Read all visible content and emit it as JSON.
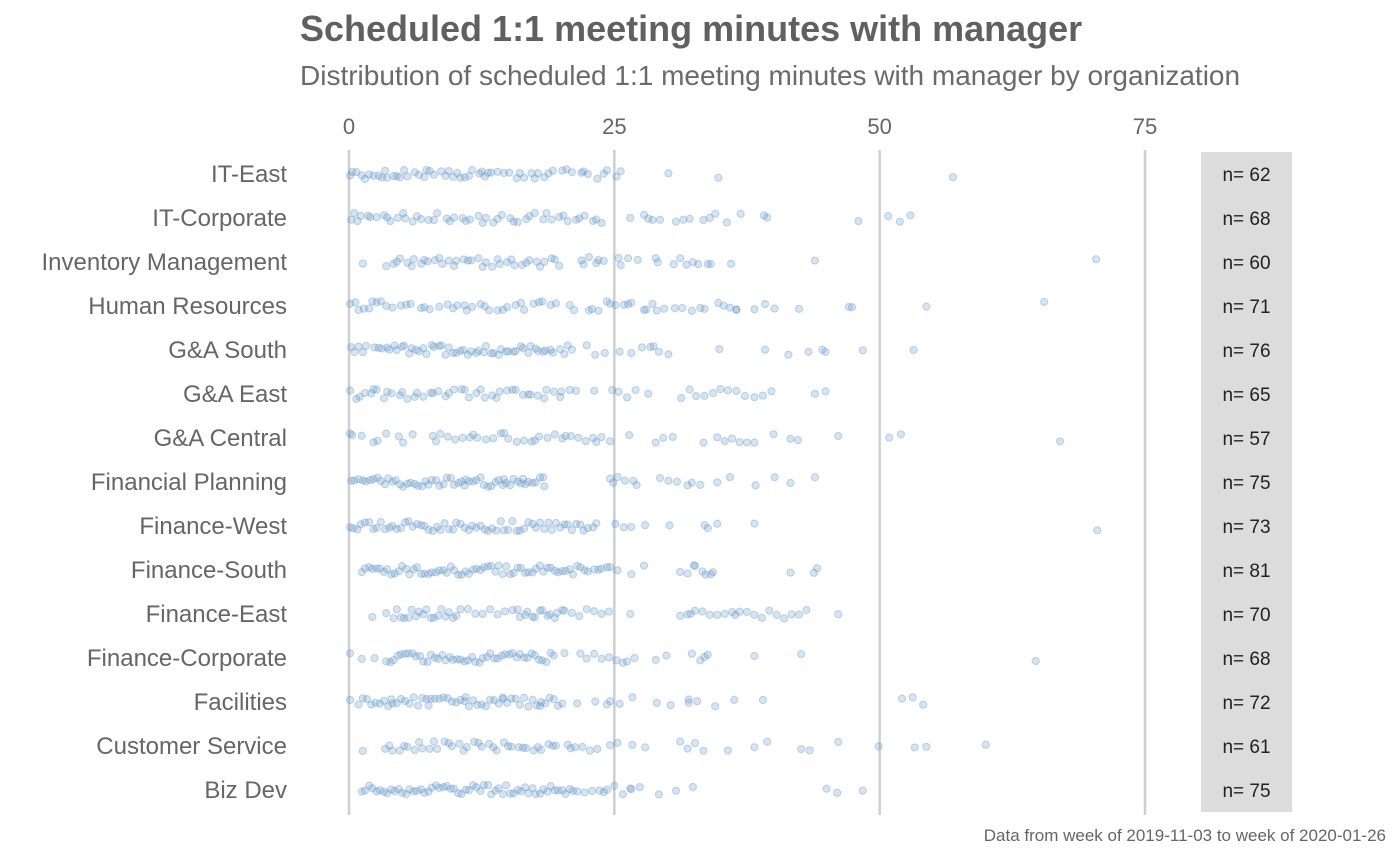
{
  "chart_data": {
    "type": "scatter",
    "title": "Scheduled 1:1 meeting minutes with manager",
    "subtitle": "Distribution of scheduled 1:1 meeting minutes with manager by organization",
    "caption": "Data from week of 2019-11-03 to week of 2020-01-26",
    "xlim": [
      0,
      80
    ],
    "x_ticks": [
      0,
      25,
      50,
      75
    ],
    "x_tick_labels": [
      "0",
      "25",
      "50",
      "75"
    ],
    "x_axis_position": "top",
    "grid": "vertical major lines only",
    "point_color": "#5b8fc4",
    "point_opacity": 0.25,
    "counts_panel_color": "#dcdcdc",
    "categories": [
      "IT-East",
      "IT-Corporate",
      "Inventory Management",
      "Human Resources",
      "G&A South",
      "G&A East",
      "G&A Central",
      "Financial Planning",
      "Finance-West",
      "Finance-South",
      "Finance-East",
      "Finance-Corporate",
      "Facilities",
      "Customer Service",
      "Biz Dev"
    ],
    "counts": [
      "n= 62",
      "n= 68",
      "n= 60",
      "n= 71",
      "n= 76",
      "n= 65",
      "n= 57",
      "n= 75",
      "n= 73",
      "n= 81",
      "n= 70",
      "n= 68",
      "n= 72",
      "n= 61",
      "n= 75"
    ],
    "series": [
      {
        "values": [
          0.1,
          0.3,
          1.2,
          1.5,
          2.3,
          2.8,
          3.4,
          3.6,
          4.5,
          4.8,
          5.5,
          6.2,
          7.1,
          7.6,
          8.0,
          8.7,
          9.4,
          9.8,
          10.5,
          10.9,
          11.6,
          12.3,
          12.8,
          13.4,
          14.0,
          15.1,
          15.8,
          16.5,
          17.2,
          17.8,
          18.4,
          19.2,
          20.1,
          21.0,
          21.9,
          22.5,
          23.4,
          24.0,
          25.2,
          25.6,
          30.1,
          34.8,
          56.9,
          0.7,
          1.9,
          3.1,
          4.2,
          5.2,
          6.6,
          7.3,
          9.1,
          10.2,
          11.3,
          12.5,
          13.1,
          14.6,
          16.1,
          17.5,
          18.8,
          20.5,
          22.1,
          24.3
        ]
      },
      {
        "values": [
          0.2,
          0.5,
          1.1,
          1.8,
          2.6,
          3.3,
          3.9,
          4.6,
          5.3,
          6.0,
          6.8,
          7.5,
          8.3,
          9.2,
          9.9,
          10.7,
          11.4,
          12.2,
          12.9,
          13.6,
          14.4,
          15.2,
          15.9,
          16.7,
          17.5,
          18.3,
          19.1,
          19.8,
          20.6,
          21.4,
          22.2,
          23.0,
          23.8,
          26.5,
          27.8,
          28.2,
          29.3,
          30.8,
          32.1,
          33.4,
          34.5,
          35.6,
          36.9,
          39.1,
          39.4,
          48.0,
          50.8,
          51.9,
          52.9,
          0.8,
          2.0,
          3.6,
          5.1,
          6.4,
          8.0,
          9.5,
          11.0,
          12.6,
          14.0,
          15.5,
          17.0,
          18.6,
          20.2,
          21.7,
          23.3,
          28.6,
          31.5,
          34.0
        ]
      },
      {
        "values": [
          1.3,
          3.5,
          4.2,
          4.8,
          5.5,
          6.1,
          6.8,
          7.4,
          8.1,
          8.8,
          9.4,
          10.1,
          10.8,
          11.5,
          12.2,
          12.9,
          13.5,
          14.2,
          14.9,
          15.6,
          16.3,
          17.0,
          17.7,
          18.4,
          19.1,
          19.8,
          21.9,
          22.6,
          23.3,
          24.0,
          25.4,
          26.3,
          28.9,
          31.2,
          31.8,
          32.9,
          33.8,
          43.9,
          70.4,
          4.5,
          5.9,
          7.1,
          8.5,
          9.9,
          11.2,
          12.6,
          14.0,
          15.3,
          16.7,
          18.0,
          19.4,
          22.1,
          23.5,
          25.6,
          27.2,
          29.1,
          30.6,
          32.4,
          34.1,
          36.0
        ]
      },
      {
        "values": [
          0.1,
          0.6,
          1.4,
          2.2,
          2.6,
          3.5,
          4.9,
          5.4,
          6.8,
          7.1,
          8.5,
          9.3,
          10.2,
          10.9,
          11.6,
          12.4,
          13.2,
          14.0,
          14.9,
          15.7,
          16.5,
          17.4,
          18.2,
          19.0,
          20.8,
          22.6,
          23.5,
          24.3,
          25.1,
          25.9,
          26.6,
          27.8,
          28.6,
          29.0,
          30.7,
          32.3,
          33.5,
          35.3,
          35.9,
          36.5,
          39.2,
          42.4,
          47.1,
          47.4,
          54.4,
          65.5,
          0.9,
          1.9,
          3.0,
          4.1,
          5.8,
          7.6,
          9.8,
          11.1,
          12.8,
          14.5,
          16.2,
          17.9,
          19.5,
          21.2,
          22.9,
          24.6,
          26.3,
          28.0,
          29.7,
          31.4,
          33.1,
          34.8,
          36.5,
          38.2,
          40.1
        ]
      },
      {
        "values": [
          0.2,
          0.9,
          1.6,
          2.4,
          3.1,
          3.8,
          4.5,
          5.2,
          5.9,
          6.6,
          7.3,
          8.0,
          8.7,
          9.4,
          10.1,
          10.8,
          11.5,
          12.2,
          12.9,
          13.6,
          14.3,
          15.0,
          15.7,
          16.4,
          17.1,
          17.8,
          18.5,
          19.2,
          19.9,
          20.6,
          23.2,
          24.1,
          26.6,
          27.6,
          28.4,
          29.2,
          30.1,
          34.9,
          39.2,
          41.4,
          43.3,
          44.6,
          44.9,
          48.4,
          53.2,
          0.5,
          1.3,
          2.8,
          3.6,
          4.3,
          5.0,
          5.7,
          6.3,
          7.0,
          7.8,
          8.5,
          9.1,
          9.8,
          10.5,
          11.2,
          12.0,
          12.7,
          13.4,
          14.1,
          14.8,
          15.5,
          16.2,
          16.9,
          17.6,
          18.3,
          19.0,
          20.3,
          21.0,
          22.4,
          25.5,
          28.7
        ]
      },
      {
        "values": [
          0.1,
          0.7,
          1.5,
          2.1,
          2.6,
          3.3,
          4.0,
          4.8,
          5.5,
          6.2,
          7.0,
          7.7,
          8.4,
          9.1,
          9.9,
          10.6,
          11.3,
          12.0,
          12.8,
          13.5,
          14.2,
          14.9,
          15.7,
          16.4,
          17.1,
          17.8,
          18.6,
          19.3,
          20.0,
          20.8,
          23.1,
          24.8,
          25.4,
          26.2,
          27.0,
          28.2,
          31.3,
          32.1,
          32.7,
          33.5,
          34.3,
          35.0,
          35.7,
          36.5,
          37.3,
          38.2,
          39.0,
          39.8,
          43.9,
          44.9,
          1.0,
          2.3,
          3.6,
          5.0,
          6.4,
          7.9,
          9.4,
          10.9,
          12.4,
          13.9,
          15.4,
          16.9,
          18.4,
          19.9,
          21.4
        ]
      },
      {
        "values": [
          0.1,
          0.3,
          2.3,
          2.7,
          4.7,
          5.1,
          7.9,
          8.6,
          9.3,
          10.0,
          10.7,
          11.4,
          12.1,
          12.9,
          13.6,
          14.3,
          15.0,
          15.8,
          16.5,
          17.2,
          17.9,
          18.7,
          19.4,
          20.1,
          20.9,
          21.6,
          22.3,
          23.0,
          23.8,
          24.6,
          28.9,
          29.6,
          30.5,
          34.7,
          35.4,
          36.1,
          36.8,
          37.5,
          38.2,
          40.0,
          41.6,
          42.3,
          46.1,
          50.9,
          52.0,
          67.0,
          1.2,
          3.5,
          6.0,
          8.2,
          11.7,
          14.6,
          17.5,
          20.4,
          23.3,
          26.4,
          33.4
        ]
      },
      {
        "values": [
          0.2,
          0.9,
          1.6,
          2.3,
          3.0,
          3.4,
          4.1,
          4.8,
          5.5,
          6.2,
          6.9,
          7.5,
          8.2,
          8.9,
          9.6,
          10.3,
          11.0,
          11.7,
          12.4,
          13.1,
          13.8,
          14.5,
          15.2,
          15.9,
          16.6,
          17.3,
          18.0,
          18.4,
          24.6,
          25.3,
          26.0,
          26.8,
          29.3,
          30.1,
          30.9,
          32.3,
          33.1,
          34.7,
          35.9,
          38.3,
          40.1,
          41.6,
          43.9,
          0.5,
          1.3,
          2.7,
          3.7,
          4.4,
          5.1,
          5.8,
          6.5,
          7.2,
          8.5,
          9.2,
          9.9,
          10.6,
          11.3,
          12.0,
          12.7,
          13.4,
          14.1,
          14.8,
          15.5,
          16.2,
          16.9,
          17.6,
          18.3,
          2.0,
          7.8,
          10.9,
          14.6,
          16.4,
          24.9,
          27.1,
          31.9
        ]
      },
      {
        "values": [
          0.1,
          0.8,
          1.5,
          2.3,
          3.0,
          3.8,
          4.5,
          5.3,
          6.0,
          6.8,
          7.5,
          8.3,
          9.0,
          9.8,
          10.5,
          11.3,
          12.0,
          12.8,
          13.5,
          14.3,
          15.0,
          15.8,
          16.5,
          17.3,
          18.0,
          18.8,
          19.5,
          20.3,
          21.0,
          21.8,
          22.5,
          23.3,
          25.1,
          25.9,
          26.6,
          27.9,
          30.2,
          33.5,
          34.7,
          38.2,
          70.5,
          0.4,
          1.1,
          1.9,
          2.6,
          3.4,
          4.1,
          4.9,
          5.6,
          6.4,
          7.1,
          7.9,
          8.6,
          9.4,
          10.1,
          10.9,
          11.6,
          12.4,
          13.1,
          13.9,
          14.6,
          15.4,
          16.1,
          16.9,
          17.6,
          18.4,
          19.1,
          19.9,
          20.6,
          21.4,
          22.1,
          23.0,
          33.8
        ]
      },
      {
        "values": [
          1.2,
          1.9,
          2.6,
          3.3,
          4.0,
          4.7,
          5.4,
          6.1,
          6.8,
          7.5,
          8.2,
          8.9,
          9.6,
          10.3,
          11.0,
          11.7,
          12.4,
          13.1,
          13.8,
          14.5,
          15.2,
          15.9,
          16.6,
          17.3,
          18.0,
          18.7,
          19.4,
          20.1,
          20.8,
          21.5,
          22.2,
          23.1,
          23.8,
          24.6,
          25.3,
          26.6,
          27.8,
          31.2,
          31.9,
          32.6,
          33.3,
          34.1,
          41.6,
          43.8,
          44.1,
          1.5,
          2.2,
          2.9,
          3.6,
          4.3,
          5.0,
          5.7,
          6.4,
          7.1,
          7.8,
          8.5,
          9.2,
          9.9,
          10.6,
          11.3,
          12.0,
          12.7,
          13.4,
          14.1,
          14.8,
          15.5,
          16.2,
          16.9,
          17.6,
          18.3,
          19.0,
          19.7,
          20.4,
          21.1,
          21.8,
          22.5,
          23.5,
          24.3,
          32.5,
          33.6,
          34.3
        ]
      },
      {
        "values": [
          2.2,
          3.5,
          4.2,
          4.9,
          5.6,
          6.3,
          7.0,
          7.7,
          8.4,
          9.1,
          9.8,
          10.5,
          11.2,
          11.9,
          12.6,
          13.3,
          14.0,
          14.7,
          15.4,
          16.1,
          16.8,
          17.5,
          18.2,
          18.9,
          19.6,
          20.3,
          21.0,
          21.7,
          22.4,
          23.1,
          23.8,
          24.5,
          26.5,
          31.2,
          31.9,
          32.6,
          33.3,
          34.0,
          34.7,
          35.4,
          36.1,
          36.8,
          37.5,
          38.2,
          38.9,
          39.6,
          40.3,
          41.0,
          41.7,
          42.4,
          43.1,
          46.1,
          4.5,
          5.2,
          5.9,
          6.6,
          7.3,
          8.0,
          8.7,
          9.4,
          10.1,
          15.9,
          16.6,
          17.3,
          18.0,
          18.7,
          19.4,
          20.1,
          32.2,
          36.4
        ]
      },
      {
        "values": [
          0.1,
          1.2,
          2.4,
          3.5,
          4.2,
          4.9,
          5.6,
          6.3,
          7.0,
          7.7,
          8.4,
          9.1,
          9.8,
          10.5,
          11.2,
          11.9,
          12.6,
          13.3,
          14.0,
          14.7,
          15.4,
          16.1,
          16.8,
          17.5,
          18.2,
          19.0,
          20.3,
          21.8,
          23.1,
          23.8,
          24.5,
          25.2,
          26.2,
          26.9,
          28.9,
          29.9,
          32.3,
          33.1,
          33.8,
          38.2,
          42.6,
          64.7,
          3.9,
          4.6,
          5.3,
          6.0,
          6.7,
          7.4,
          8.1,
          8.8,
          9.5,
          10.2,
          10.9,
          11.6,
          12.3,
          13.0,
          13.7,
          14.4,
          15.1,
          15.8,
          16.5,
          17.2,
          17.9,
          18.6,
          19.3,
          22.4,
          25.8,
          33.5
        ]
      },
      {
        "values": [
          0.1,
          0.9,
          1.7,
          2.5,
          3.3,
          4.1,
          4.9,
          5.7,
          6.5,
          7.3,
          8.1,
          8.9,
          9.7,
          10.5,
          11.3,
          12.1,
          12.9,
          13.7,
          14.5,
          15.3,
          16.1,
          16.9,
          17.7,
          18.5,
          19.3,
          20.1,
          23.2,
          24.3,
          25.5,
          26.7,
          29.0,
          30.3,
          32.0,
          32.8,
          34.5,
          36.3,
          39.0,
          52.1,
          53.1,
          54.1,
          1.3,
          2.1,
          2.9,
          3.7,
          4.5,
          5.3,
          6.1,
          6.9,
          7.7,
          8.5,
          9.3,
          10.1,
          10.9,
          11.7,
          12.5,
          13.3,
          14.1,
          14.9,
          15.7,
          16.5,
          17.3,
          18.1,
          18.9,
          19.7,
          4.0,
          7.5,
          11.0,
          14.5,
          18.0,
          21.5,
          24.6,
          32.0
        ]
      },
      {
        "values": [
          1.3,
          3.4,
          4.1,
          4.8,
          5.5,
          6.2,
          6.9,
          7.6,
          8.3,
          9.0,
          9.7,
          10.4,
          11.1,
          11.8,
          12.5,
          13.2,
          13.9,
          14.6,
          15.3,
          16.0,
          16.7,
          17.4,
          18.1,
          18.8,
          19.5,
          20.6,
          21.3,
          22.0,
          22.7,
          23.4,
          24.6,
          25.3,
          26.7,
          27.9,
          31.2,
          31.9,
          32.6,
          33.4,
          35.7,
          38.2,
          39.4,
          42.6,
          43.4,
          46.1,
          49.9,
          53.3,
          54.4,
          60.0,
          3.8,
          5.2,
          6.6,
          8.0,
          9.4,
          10.8,
          12.2,
          13.6,
          15.0,
          16.4,
          17.8,
          19.2,
          20.9
        ]
      },
      {
        "values": [
          1.2,
          1.9,
          2.6,
          3.3,
          4.0,
          4.7,
          5.4,
          6.1,
          6.8,
          7.5,
          8.2,
          8.9,
          9.6,
          10.3,
          11.0,
          11.7,
          12.4,
          13.1,
          13.8,
          14.5,
          15.2,
          15.9,
          16.6,
          17.3,
          18.0,
          18.7,
          19.4,
          20.1,
          20.8,
          21.5,
          22.2,
          22.9,
          23.6,
          24.3,
          25.0,
          25.8,
          26.5,
          27.4,
          29.2,
          30.8,
          32.4,
          45.0,
          46.0,
          48.4,
          1.5,
          2.2,
          2.9,
          3.6,
          4.3,
          5.0,
          5.7,
          6.4,
          7.1,
          7.8,
          8.5,
          9.2,
          9.9,
          10.6,
          11.3,
          12.0,
          12.7,
          13.4,
          14.1,
          14.8,
          15.5,
          16.2,
          16.9,
          17.6,
          18.3,
          19.0,
          19.7,
          20.4,
          21.1,
          24.0,
          26.6
        ]
      }
    ]
  }
}
